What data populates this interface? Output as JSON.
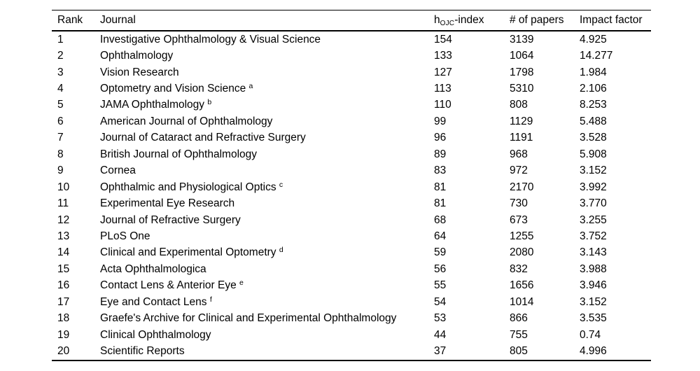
{
  "table": {
    "header": {
      "rank": "Rank",
      "journal": "Journal",
      "h_index": {
        "base": "h",
        "sub": "OJC",
        "rest": "-index"
      },
      "papers": "# of papers",
      "impact": "Impact factor"
    },
    "rows": [
      {
        "rank": "1",
        "journal": "Investigative Ophthalmology & Visual Science",
        "note": "",
        "h_index": "154",
        "papers": "3139",
        "impact": "4.925"
      },
      {
        "rank": "2",
        "journal": "Ophthalmology",
        "note": "",
        "h_index": "133",
        "papers": "1064",
        "impact": "14.277"
      },
      {
        "rank": "3",
        "journal": "Vision Research",
        "note": "",
        "h_index": "127",
        "papers": "1798",
        "impact": "1.984"
      },
      {
        "rank": "4",
        "journal": "Optometry and Vision Science",
        "note": "a",
        "h_index": "113",
        "papers": "5310",
        "impact": "2.106"
      },
      {
        "rank": "5",
        "journal": "JAMA Ophthalmology",
        "note": "b",
        "h_index": "110",
        "papers": "808",
        "impact": "8.253"
      },
      {
        "rank": "6",
        "journal": "American Journal of Ophthalmology",
        "note": "",
        "h_index": "99",
        "papers": "1129",
        "impact": "5.488"
      },
      {
        "rank": "7",
        "journal": "Journal of Cataract and Refractive Surgery",
        "note": "",
        "h_index": "96",
        "papers": "1191",
        "impact": "3.528"
      },
      {
        "rank": "8",
        "journal": "British Journal of Ophthalmology",
        "note": "",
        "h_index": "89",
        "papers": "968",
        "impact": "5.908"
      },
      {
        "rank": "9",
        "journal": "Cornea",
        "note": "",
        "h_index": "83",
        "papers": "972",
        "impact": "3.152"
      },
      {
        "rank": "10",
        "journal": "Ophthalmic and Physiological Optics",
        "note": "c",
        "h_index": "81",
        "papers": "2170",
        "impact": "3.992"
      },
      {
        "rank": "11",
        "journal": "Experimental Eye Research",
        "note": "",
        "h_index": "81",
        "papers": "730",
        "impact": "3.770"
      },
      {
        "rank": "12",
        "journal": "Journal of Refractive Surgery",
        "note": "",
        "h_index": "68",
        "papers": "673",
        "impact": "3.255"
      },
      {
        "rank": "13",
        "journal": "PLoS One",
        "note": "",
        "h_index": "64",
        "papers": "1255",
        "impact": "3.752"
      },
      {
        "rank": "14",
        "journal": "Clinical and Experimental Optometry",
        "note": "d",
        "h_index": "59",
        "papers": "2080",
        "impact": "3.143"
      },
      {
        "rank": "15",
        "journal": "Acta Ophthalmologica",
        "note": "",
        "h_index": "56",
        "papers": "832",
        "impact": "3.988"
      },
      {
        "rank": "16",
        "journal": "Contact Lens & Anterior Eye",
        "note": "e",
        "h_index": "55",
        "papers": "1656",
        "impact": "3.946"
      },
      {
        "rank": "17",
        "journal": "Eye and Contact Lens",
        "note": "f",
        "h_index": "54",
        "papers": "1014",
        "impact": "3.152"
      },
      {
        "rank": "18",
        "journal": "Graefe's Archive for Clinical and Experimental Ophthalmology",
        "note": "",
        "h_index": "53",
        "papers": "866",
        "impact": "3.535"
      },
      {
        "rank": "19",
        "journal": "Clinical Ophthalmology",
        "note": "",
        "h_index": "44",
        "papers": "755",
        "impact": "0.74"
      },
      {
        "rank": "20",
        "journal": "Scientific Reports",
        "note": "",
        "h_index": "37",
        "papers": "805",
        "impact": "4.996"
      }
    ],
    "text_color": "#000000",
    "background_color": "#ffffff",
    "rule_color": "#000000"
  }
}
